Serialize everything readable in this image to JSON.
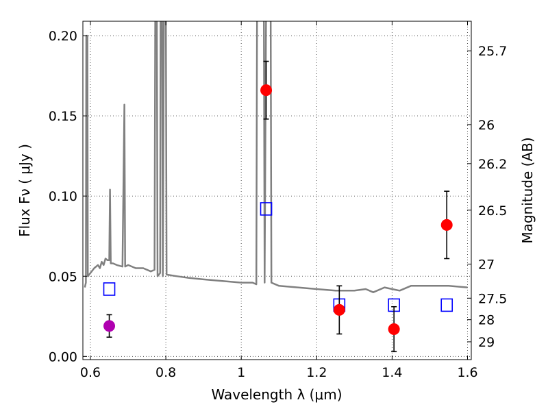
{
  "chart_data": {
    "type": "scatter",
    "xlabel": "Wavelength  λ (μm)",
    "ylabel": "Flux  Fν  ( μJy )",
    "ylabel_right": "Magnitude (AB)",
    "xlim": [
      0.58,
      1.61
    ],
    "ylim": [
      -0.002,
      0.209
    ],
    "grid": true,
    "x_ticks": [
      {
        "value": 0.6,
        "label": "0.6"
      },
      {
        "value": 0.8,
        "label": "0.8"
      },
      {
        "value": 1.0,
        "label": "1"
      },
      {
        "value": 1.2,
        "label": "1.2"
      },
      {
        "value": 1.4,
        "label": "1.4"
      },
      {
        "value": 1.6,
        "label": "1.6"
      }
    ],
    "y_ticks": [
      {
        "value": 0.0,
        "label": "0.00"
      },
      {
        "value": 0.05,
        "label": "0.05"
      },
      {
        "value": 0.1,
        "label": "0.10"
      },
      {
        "value": 0.15,
        "label": "0.15"
      },
      {
        "value": 0.2,
        "label": "0.20"
      }
    ],
    "right_ticks": [
      {
        "mag": 25.7,
        "label": "25.7"
      },
      {
        "mag": 26.0,
        "label": "26"
      },
      {
        "mag": 26.2,
        "label": "26.2"
      },
      {
        "mag": 26.5,
        "label": "26.5"
      },
      {
        "mag": 27.0,
        "label": "27"
      },
      {
        "mag": 27.5,
        "label": "27.5"
      },
      {
        "mag": 28.0,
        "label": "28"
      },
      {
        "mag": 29.0,
        "label": "29"
      }
    ],
    "colors": {
      "spectrum": "#808080",
      "detections": "#ff0000",
      "other_point": "#b000b0",
      "model": "#0000ff",
      "errorbar": "#000000",
      "grid": "#555555"
    },
    "series": [
      {
        "kind": "spectrum",
        "points": [
          [
            0.585,
            0.043
          ],
          [
            0.588,
            0.046
          ],
          [
            0.589,
            0.2
          ],
          [
            0.592,
            0.2
          ],
          [
            0.593,
            0.05
          ],
          [
            0.6,
            0.052
          ],
          [
            0.61,
            0.055
          ],
          [
            0.62,
            0.057
          ],
          [
            0.625,
            0.055
          ],
          [
            0.63,
            0.059
          ],
          [
            0.635,
            0.057
          ],
          [
            0.64,
            0.061
          ],
          [
            0.645,
            0.06
          ],
          [
            0.65,
            0.06
          ],
          [
            0.652,
            0.104
          ],
          [
            0.654,
            0.058
          ],
          [
            0.66,
            0.058
          ],
          [
            0.67,
            0.057
          ],
          [
            0.685,
            0.056
          ],
          [
            0.69,
            0.157
          ],
          [
            0.692,
            0.056
          ],
          [
            0.7,
            0.057
          ],
          [
            0.72,
            0.055
          ],
          [
            0.74,
            0.055
          ],
          [
            0.76,
            0.053
          ],
          [
            0.77,
            0.054
          ],
          [
            0.772,
            0.22
          ],
          [
            0.776,
            0.22
          ],
          [
            0.778,
            0.05
          ],
          [
            0.785,
            0.052
          ],
          [
            0.786,
            0.22
          ],
          [
            0.79,
            0.22
          ],
          [
            0.792,
            0.05
          ],
          [
            0.795,
            0.22
          ],
          [
            0.8,
            0.22
          ],
          [
            0.802,
            0.051
          ],
          [
            0.83,
            0.05
          ],
          [
            0.86,
            0.049
          ],
          [
            0.9,
            0.048
          ],
          [
            0.95,
            0.047
          ],
          [
            1.0,
            0.046
          ],
          [
            1.03,
            0.046
          ],
          [
            1.04,
            0.045
          ],
          [
            1.042,
            0.22
          ],
          [
            1.06,
            0.22
          ],
          [
            1.062,
            0.046
          ],
          [
            1.066,
            0.22
          ],
          [
            1.078,
            0.22
          ],
          [
            1.08,
            0.046
          ],
          [
            1.1,
            0.044
          ],
          [
            1.15,
            0.043
          ],
          [
            1.2,
            0.042
          ],
          [
            1.25,
            0.041
          ],
          [
            1.3,
            0.041
          ],
          [
            1.33,
            0.042
          ],
          [
            1.35,
            0.04
          ],
          [
            1.38,
            0.043
          ],
          [
            1.4,
            0.042
          ],
          [
            1.42,
            0.041
          ],
          [
            1.45,
            0.044
          ],
          [
            1.5,
            0.044
          ],
          [
            1.55,
            0.044
          ],
          [
            1.6,
            0.043
          ]
        ]
      },
      {
        "kind": "detections",
        "points": [
          {
            "x": 1.066,
            "y": 0.166,
            "err": 0.018
          },
          {
            "x": 1.26,
            "y": 0.029,
            "err": 0.015
          },
          {
            "x": 1.405,
            "y": 0.017,
            "err": 0.014
          },
          {
            "x": 1.545,
            "y": 0.082,
            "err": 0.021
          }
        ]
      },
      {
        "kind": "other_point",
        "points": [
          {
            "x": 0.65,
            "y": 0.019,
            "err": 0.007
          }
        ]
      },
      {
        "kind": "model",
        "points": [
          {
            "x": 0.65,
            "y": 0.042
          },
          {
            "x": 1.066,
            "y": 0.092
          },
          {
            "x": 1.26,
            "y": 0.032
          },
          {
            "x": 1.405,
            "y": 0.032
          },
          {
            "x": 1.545,
            "y": 0.032
          }
        ]
      }
    ]
  }
}
